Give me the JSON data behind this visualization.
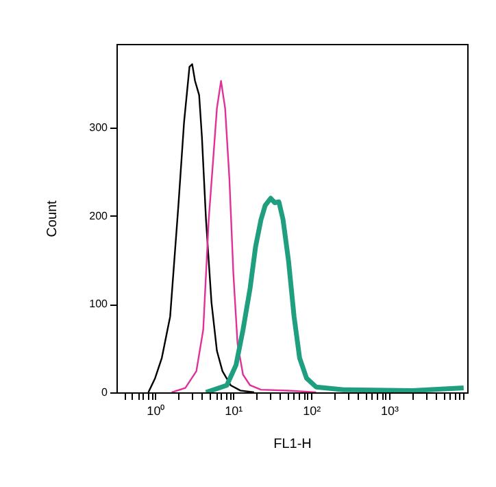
{
  "chart_data": {
    "type": "line",
    "xlabel": "FL1-H",
    "ylabel": "Count",
    "log": "x",
    "grid": false,
    "marker": "none",
    "line_style": "solid",
    "xlim": [
      0.32,
      10000
    ],
    "ylim": [
      0,
      395
    ],
    "xticks": [
      {
        "value": 0.4,
        "label": null
      },
      {
        "value": 0.5,
        "label": null
      },
      {
        "value": 0.6,
        "label": null
      },
      {
        "value": 0.7,
        "label": null
      },
      {
        "value": 0.8,
        "label": null
      },
      {
        "value": 0.9,
        "label": null
      },
      {
        "value": 1,
        "label": "10⁰"
      },
      {
        "value": 2,
        "label": null
      },
      {
        "value": 3,
        "label": null
      },
      {
        "value": 4,
        "label": null
      },
      {
        "value": 5,
        "label": null
      },
      {
        "value": 6,
        "label": null
      },
      {
        "value": 7,
        "label": null
      },
      {
        "value": 8,
        "label": null
      },
      {
        "value": 9,
        "label": null
      },
      {
        "value": 10,
        "label": "10¹"
      },
      {
        "value": 20,
        "label": null
      },
      {
        "value": 30,
        "label": null
      },
      {
        "value": 40,
        "label": null
      },
      {
        "value": 50,
        "label": null
      },
      {
        "value": 60,
        "label": null
      },
      {
        "value": 70,
        "label": null
      },
      {
        "value": 80,
        "label": null
      },
      {
        "value": 90,
        "label": null
      },
      {
        "value": 100,
        "label": "10²"
      },
      {
        "value": 200,
        "label": null
      },
      {
        "value": 300,
        "label": null
      },
      {
        "value": 400,
        "label": null
      },
      {
        "value": 500,
        "label": null
      },
      {
        "value": 600,
        "label": null
      },
      {
        "value": 700,
        "label": null
      },
      {
        "value": 800,
        "label": null
      },
      {
        "value": 900,
        "label": null
      },
      {
        "value": 1000,
        "label": "10³"
      },
      {
        "value": 2000,
        "label": null
      },
      {
        "value": 3000,
        "label": null
      },
      {
        "value": 4000,
        "label": null
      },
      {
        "value": 5000,
        "label": null
      },
      {
        "value": 6000,
        "label": null
      },
      {
        "value": 7000,
        "label": null
      },
      {
        "value": 8000,
        "label": null
      },
      {
        "value": 9000,
        "label": null
      }
    ],
    "yticks": [
      0,
      100,
      200,
      300
    ],
    "series": [
      {
        "color": "#000000",
        "x": [
          0.82,
          1,
          1.22,
          1.56,
          1.99,
          2.35,
          2.76,
          2.99,
          3.25,
          3.67,
          3.98,
          4.49,
          5.28,
          6.2,
          7.3,
          9.3,
          12.4,
          18.6
        ],
        "values": [
          0,
          16,
          39,
          86,
          212,
          306,
          369,
          372,
          353,
          337,
          290,
          196,
          102,
          47,
          24,
          8,
          2,
          0
        ]
      },
      {
        "color": "#e0309a",
        "x": [
          1.63,
          2.44,
          3.38,
          4.14,
          4.87,
          5.5,
          6.2,
          7.0,
          7.9,
          8.95,
          10.1,
          11.4,
          13.4,
          16.5,
          22.7,
          51,
          116
        ],
        "values": [
          0,
          5,
          24,
          71,
          196,
          259,
          322,
          353,
          322,
          243,
          133,
          55,
          20,
          8,
          3,
          2,
          0
        ]
      },
      {
        "color": "#1f9e80",
        "x": [
          4.49,
          8.3,
          10.9,
          13.4,
          16.5,
          19.4,
          22.8,
          25.8,
          30.3,
          34.2,
          38.6,
          43.6,
          51.3,
          60.4,
          71.1,
          87.3,
          116,
          260,
          1990,
          9000
        ],
        "values": [
          0,
          8,
          31,
          71,
          118,
          165,
          196,
          212,
          220,
          215,
          216,
          196,
          149,
          86,
          39,
          16,
          6,
          3,
          2,
          5
        ]
      }
    ]
  }
}
